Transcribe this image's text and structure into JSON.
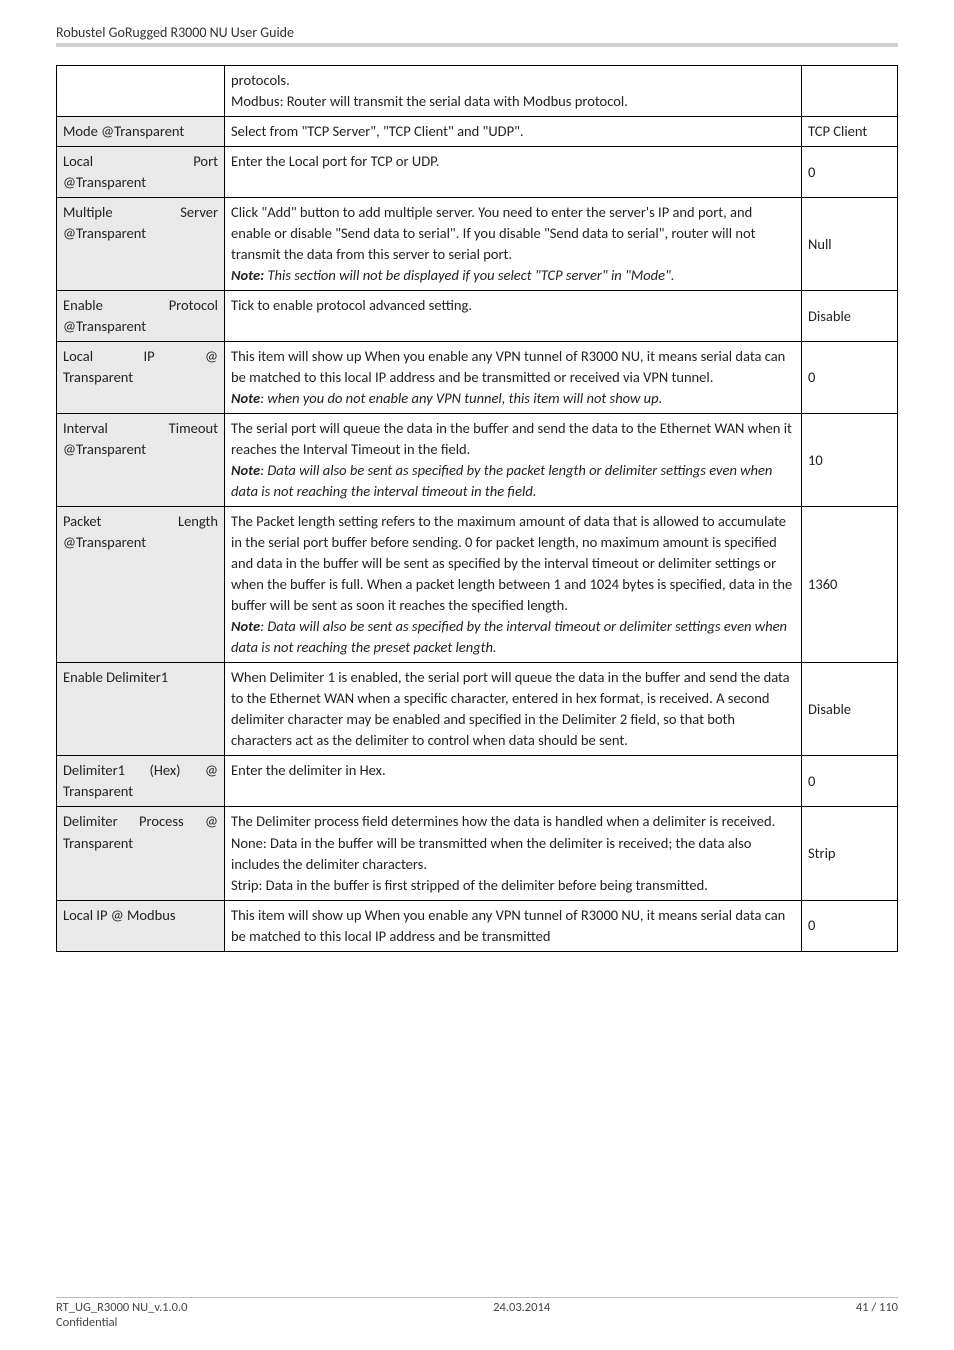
{
  "header": "Robustel GoRugged R3000 NU User Guide",
  "rows": [
    {
      "shade": false,
      "c1": "",
      "c2_parts": [
        {
          "t": "protocols."
        },
        {
          "t": "Modbus: Router will transmit the serial data with Modbus protocol."
        }
      ],
      "c3": ""
    },
    {
      "shade": true,
      "c1": "Mode @Transparent",
      "c2_parts": [
        {
          "t": "Select from \"TCP Server\", \"TCP Client\" and \"UDP\"."
        }
      ],
      "c3": "TCP Client"
    },
    {
      "shade": true,
      "c1": "Local Port @Transparent",
      "c1_justify": true,
      "c1_tokens": [
        [
          "Local",
          "Port"
        ],
        [
          "@Transparent"
        ]
      ],
      "c2_parts": [
        {
          "t": "Enter the Local port for TCP or UDP."
        }
      ],
      "c3": "0"
    },
    {
      "shade": true,
      "c1_tokens": [
        [
          "Multiple",
          "Server"
        ],
        [
          "@Transparent"
        ]
      ],
      "c1_justify": true,
      "c2_parts": [
        {
          "t": "Click \"Add\" button to add multiple server. You need to enter the server's IP and port, and enable or disable \"Send data to serial\". If you disable \"Send data to serial\", router will not transmit the data from this server to serial port."
        },
        {
          "t": "Note:",
          "cls": "bold ital",
          "inline_next": " This section will not be displayed if you select \"TCP server\" in \"Mode\".",
          "inline_cls": "ital"
        }
      ],
      "c3": "Null"
    },
    {
      "shade": true,
      "c1_tokens": [
        [
          "Enable",
          "Protocol"
        ],
        [
          "@Transparent"
        ]
      ],
      "c1_justify": true,
      "c2_parts": [
        {
          "t": "Tick to enable protocol advanced setting."
        }
      ],
      "c3": "Disable"
    },
    {
      "shade": true,
      "c1_tokens": [
        [
          "Local",
          "IP",
          "@"
        ],
        [
          "Transparent"
        ]
      ],
      "c1_justify": true,
      "c2_parts": [
        {
          "t": "This item will show up When you enable any VPN tunnel of R3000 NU, it means serial data can be matched to this local IP address and be transmitted or received via VPN tunnel."
        },
        {
          "t": "Note",
          "cls": "bold ital",
          "inline_next": ": when you do not enable any VPN tunnel, this item will not show up.",
          "inline_cls": "ital"
        }
      ],
      "c3": "0"
    },
    {
      "shade": true,
      "c1_tokens": [
        [
          "Interval",
          "Timeout"
        ],
        [
          "@Transparent"
        ]
      ],
      "c1_justify": true,
      "c2_parts": [
        {
          "t": "The serial port will queue the data in the buffer and send the data to the Ethernet WAN when it reaches the Interval Timeout in the field."
        },
        {
          "t": "Note",
          "cls": "bold ital",
          "inline_next": ": Data will also be sent as specified by the packet length or delimiter settings even when data is not reaching the interval timeout in the field.",
          "inline_cls": "ital"
        }
      ],
      "c3": "10"
    },
    {
      "shade": true,
      "c1_tokens": [
        [
          "Packet",
          "Length"
        ],
        [
          "@Transparent"
        ]
      ],
      "c1_justify": true,
      "c2_parts": [
        {
          "t": "The Packet length setting refers to the maximum amount of data that is allowed to accumulate in the serial port buffer before sending. 0 for packet length, no maximum amount is specified and data in the buffer will be sent as specified by the interval timeout or delimiter settings or when the buffer is full. When a packet length between 1 and 1024 bytes is specified, data in the buffer will be sent as soon it reaches the specified length."
        },
        {
          "t": "Note",
          "cls": "bold ital",
          "inline_next": ": Data will also be sent as specified by the interval timeout or delimiter settings even when data is not reaching the preset packet length.",
          "inline_cls": "ital"
        }
      ],
      "c3": "1360"
    },
    {
      "shade": true,
      "c1": "Enable Delimiter1",
      "c2_parts": [
        {
          "t": "When Delimiter 1 is enabled, the serial port will queue the data in the buffer and send the data to the Ethernet WAN when a specific character, entered in hex format, is received. A second delimiter character may be enabled and specified in the Delimiter 2 field, so that both characters act as the delimiter to control when data should be sent."
        }
      ],
      "c3": "Disable"
    },
    {
      "shade": true,
      "c1_tokens": [
        [
          "Delimiter1",
          "(Hex)",
          "@"
        ],
        [
          "Transparent"
        ]
      ],
      "c1_justify": true,
      "c2_parts": [
        {
          "t": "Enter the delimiter in Hex."
        }
      ],
      "c3": "0"
    },
    {
      "shade": true,
      "c1_tokens": [
        [
          "Delimiter",
          "Process",
          "@"
        ],
        [
          "Transparent"
        ]
      ],
      "c1_justify": true,
      "c2_parts": [
        {
          "t": "The Delimiter process field determines how the data is handled when a delimiter is received."
        },
        {
          "t": "None: Data in the buffer will be transmitted when the delimiter is received; the data also includes the delimiter characters."
        },
        {
          "t": "Strip: Data in the buffer is first stripped of the delimiter before being transmitted."
        }
      ],
      "c3": "Strip"
    },
    {
      "shade": true,
      "c1": "Local IP @ Modbus",
      "c2_parts": [
        {
          "t": "This item will show up When you enable any VPN tunnel of R3000 NU, it means serial data can be matched to this local IP address and be transmitted"
        }
      ],
      "c3": "0"
    }
  ],
  "footer": {
    "left1": "RT_UG_R3000 NU_v.1.0.0",
    "left2": "Confidential",
    "center": "24.03.2014",
    "right": "41 / 110"
  }
}
